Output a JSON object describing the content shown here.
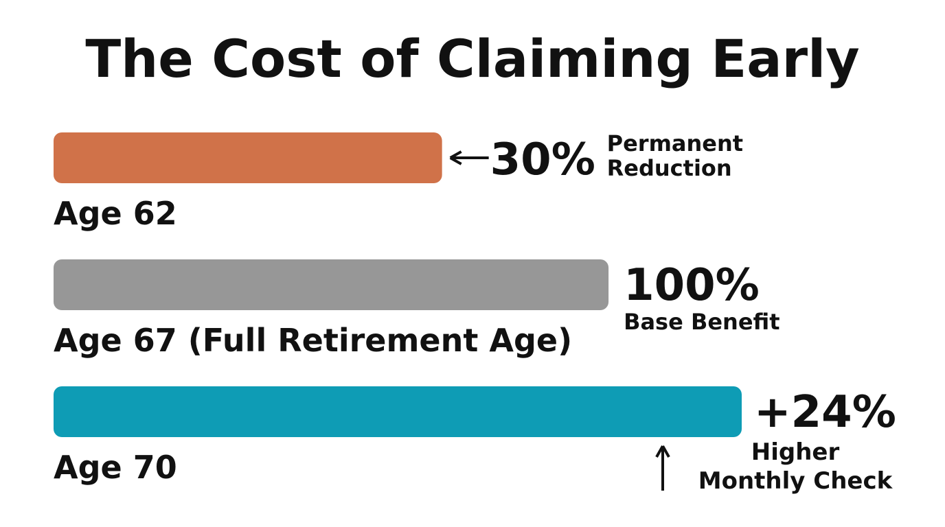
{
  "chart_data": {
    "type": "bar",
    "orientation": "horizontal",
    "title": "The Cost of Claiming Early",
    "categories": [
      "Age 62",
      "Age 67 (Full Retirement Age)",
      "Age 70"
    ],
    "values": [
      70,
      100,
      124
    ],
    "colors": [
      "#d07249",
      "#979797",
      "#0e9cb5"
    ],
    "annotations": [
      {
        "text": "30%",
        "caption": [
          "Permanent",
          "Reduction"
        ]
      },
      {
        "text": "100%",
        "caption": [
          "Base Benefit"
        ]
      },
      {
        "text": "+24%",
        "caption": [
          "Higher",
          "Monthly Check"
        ]
      }
    ]
  }
}
